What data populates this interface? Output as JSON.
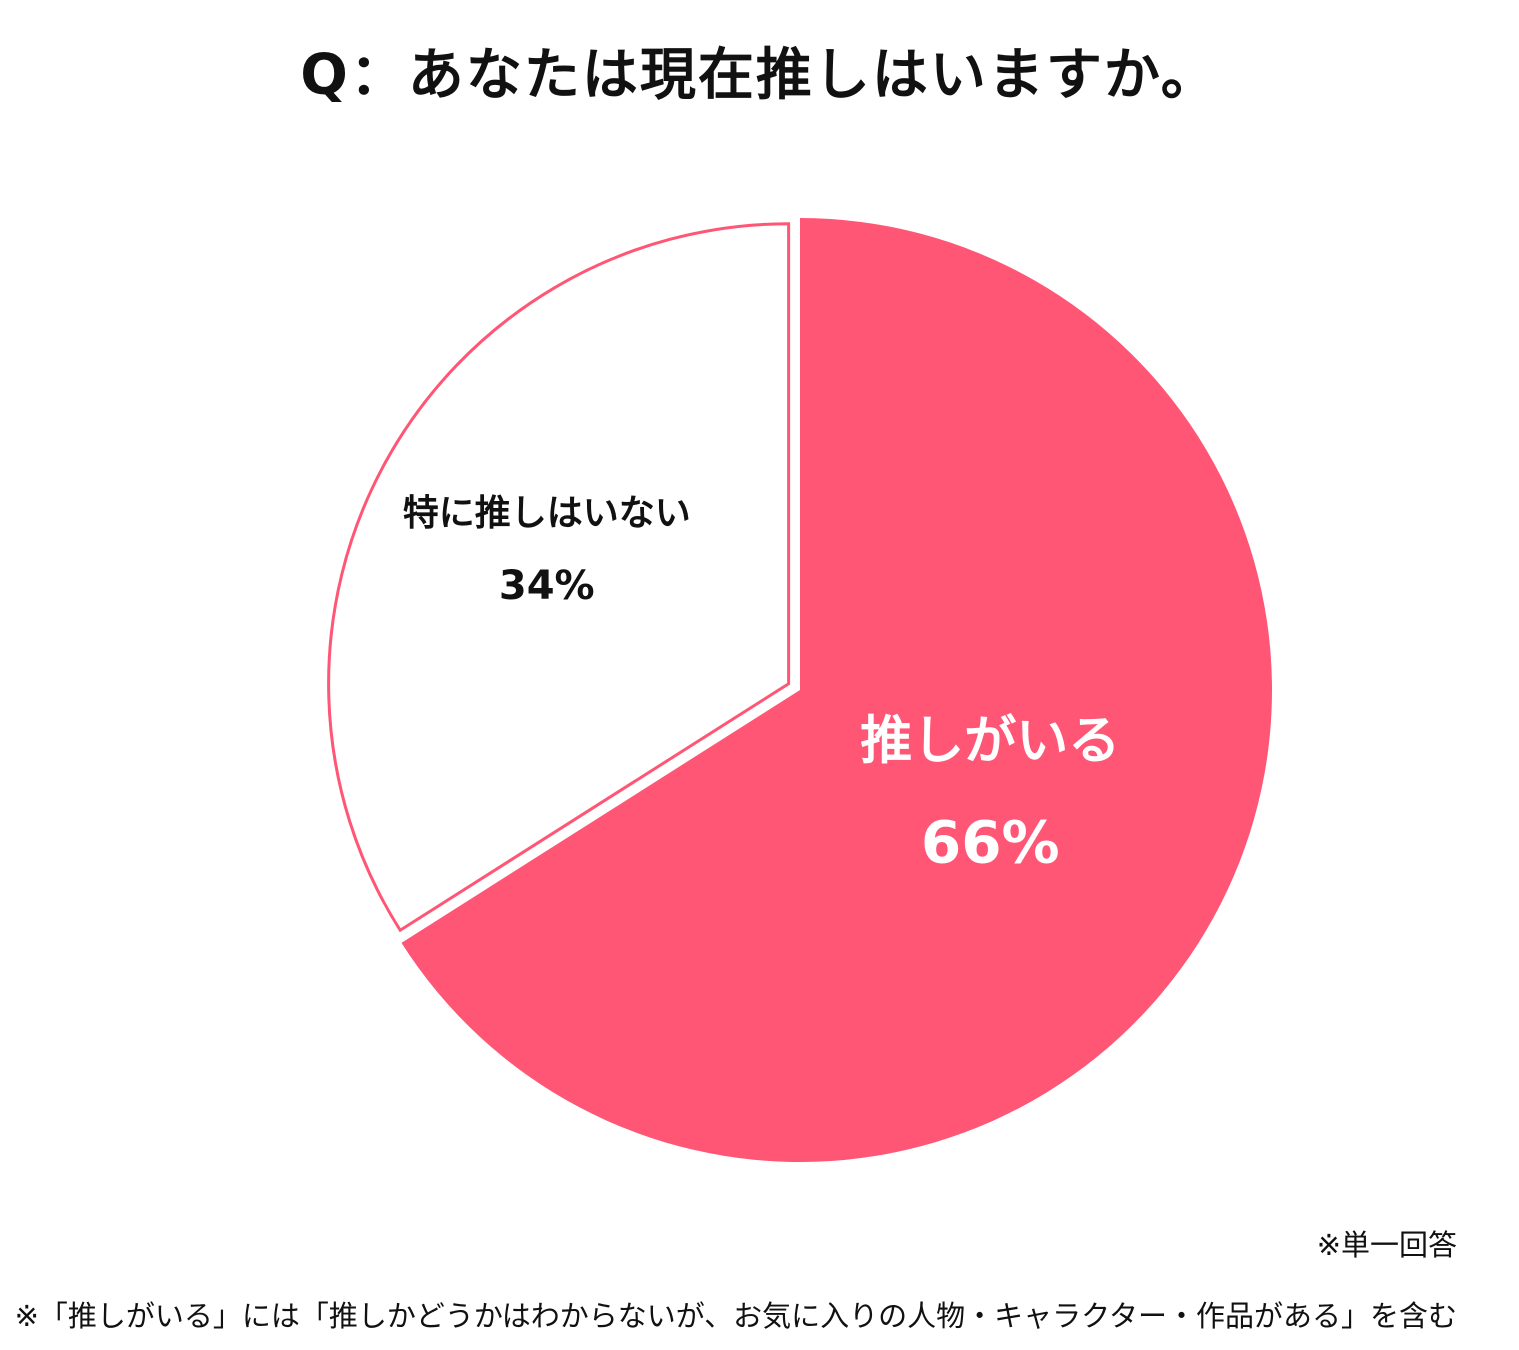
{
  "title": "Q：あなたは現在推しはいますか。",
  "chart_data": {
    "type": "pie",
    "slices": [
      {
        "label": "推しがいる",
        "value": 66,
        "value_label": "66%",
        "color": "#ff5675",
        "text_color": "#ffffff"
      },
      {
        "label": "特に推しはいない",
        "value": 34,
        "value_label": "34%",
        "color": "#ffffff",
        "text_color": "#111111"
      }
    ]
  },
  "notes": {
    "single_answer": "※単一回答",
    "definition": "※「推しがいる」には「推しかどうかはわからないが、お気に入りの人物・キャラクター・作品がある」を含む"
  }
}
